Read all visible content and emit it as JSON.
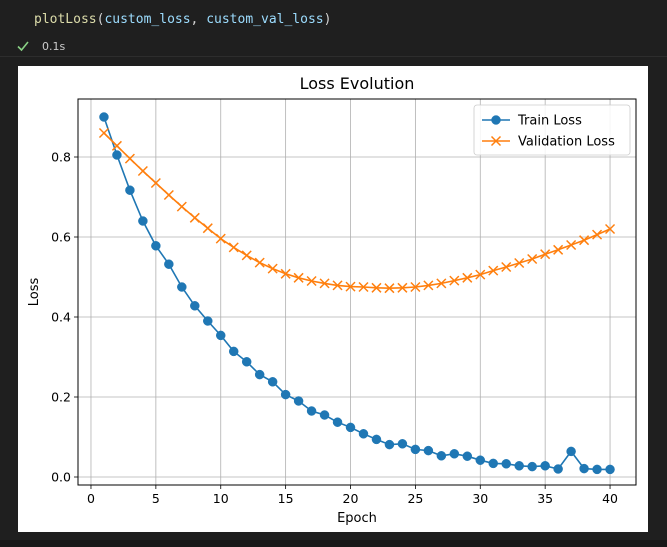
{
  "cell": {
    "code": {
      "function": "plotLoss",
      "open_paren": "(",
      "arg1": "custom_loss",
      "comma": ", ",
      "arg2": "custom_val_loss",
      "close_paren": ")"
    },
    "status_icon": "check-icon",
    "status_color": "#89d185",
    "exec_time": "0.1s"
  },
  "chart_data": {
    "type": "line",
    "title": "Loss Evolution",
    "xlabel": "Epoch",
    "ylabel": "Loss",
    "xlim": [
      -1,
      42
    ],
    "ylim": [
      -0.02,
      0.945
    ],
    "xticks": [
      0,
      5,
      10,
      15,
      20,
      25,
      30,
      35,
      40
    ],
    "yticks": [
      0.0,
      0.2,
      0.4,
      0.6,
      0.8
    ],
    "ytick_labels": [
      "0.0",
      "0.2",
      "0.4",
      "0.6",
      "0.8"
    ],
    "grid": true,
    "legend_position": "top-right",
    "x": [
      1,
      2,
      3,
      4,
      5,
      6,
      7,
      8,
      9,
      10,
      11,
      12,
      13,
      14,
      15,
      16,
      17,
      18,
      19,
      20,
      21,
      22,
      23,
      24,
      25,
      26,
      27,
      28,
      29,
      30,
      31,
      32,
      33,
      34,
      35,
      36,
      37,
      38,
      39,
      40
    ],
    "series": [
      {
        "name": "Train Loss",
        "color": "#1f77b4",
        "marker": "circle",
        "values": [
          0.9,
          0.805,
          0.717,
          0.64,
          0.578,
          0.532,
          0.475,
          0.428,
          0.39,
          0.354,
          0.314,
          0.288,
          0.256,
          0.238,
          0.206,
          0.19,
          0.165,
          0.155,
          0.137,
          0.124,
          0.108,
          0.094,
          0.081,
          0.083,
          0.069,
          0.066,
          0.053,
          0.058,
          0.052,
          0.042,
          0.034,
          0.033,
          0.028,
          0.026,
          0.028,
          0.02,
          0.064,
          0.021,
          0.019,
          0.019
        ]
      },
      {
        "name": "Validation Loss",
        "color": "#ff7f0e",
        "marker": "x",
        "values": [
          0.86,
          0.828,
          0.796,
          0.765,
          0.735,
          0.705,
          0.676,
          0.648,
          0.622,
          0.596,
          0.574,
          0.554,
          0.536,
          0.521,
          0.508,
          0.498,
          0.49,
          0.484,
          0.479,
          0.476,
          0.475,
          0.473,
          0.472,
          0.473,
          0.475,
          0.479,
          0.484,
          0.491,
          0.498,
          0.506,
          0.516,
          0.525,
          0.535,
          0.545,
          0.557,
          0.568,
          0.58,
          0.592,
          0.606,
          0.62
        ]
      }
    ]
  }
}
